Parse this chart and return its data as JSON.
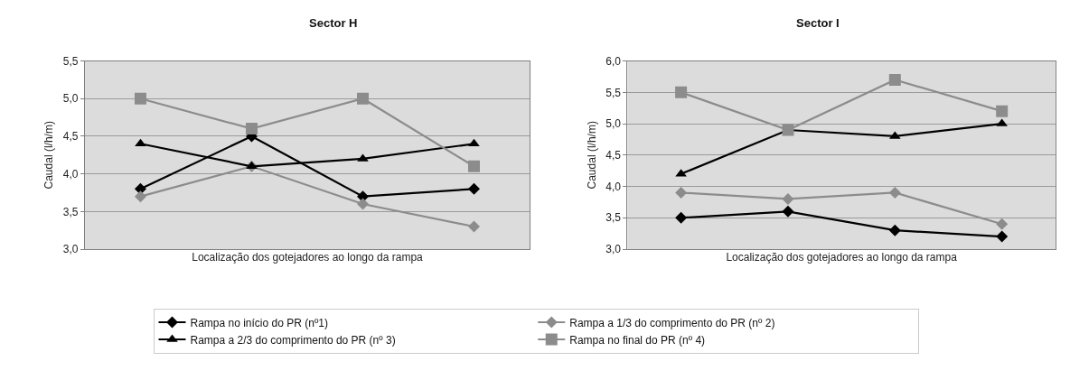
{
  "chart_data": [
    {
      "type": "line",
      "title": "Sector H",
      "xlabel": "Localização dos gotejadores ao longo da rampa",
      "ylabel": "Caudal (l/h/m)",
      "categories": [
        null,
        null,
        null,
        null
      ],
      "ylim": [
        3.0,
        5.5
      ],
      "yticks": [
        {
          "value": 3.0,
          "label": "3,0"
        },
        {
          "value": 3.5,
          "label": "3,5"
        },
        {
          "value": 4.0,
          "label": "4,0"
        },
        {
          "value": 4.5,
          "label": "4,5"
        },
        {
          "value": 5.0,
          "label": "5,0"
        },
        {
          "value": 5.5,
          "label": "5,5"
        }
      ],
      "grid": "y",
      "legend": "bottom",
      "series": [
        {
          "name": "Rampa no início do PR (nº1)",
          "color": "#000000",
          "marker": "diamond",
          "values": [
            3.8,
            4.5,
            3.7,
            3.8
          ]
        },
        {
          "name": "Rampa a 1/3 do comprimento do PR (nº 2)",
          "color": "#8c8c8c",
          "marker": "diamond",
          "values": [
            3.7,
            4.1,
            3.6,
            3.3
          ]
        },
        {
          "name": "Rampa a 2/3 do comprimento do PR (nº 3)",
          "color": "#000000",
          "marker": "triangle",
          "values": [
            4.4,
            4.1,
            4.2,
            4.4
          ]
        },
        {
          "name": "Rampa no final do PR (nº 4)",
          "color": "#8c8c8c",
          "marker": "square",
          "values": [
            5.0,
            4.6,
            5.0,
            4.1
          ]
        }
      ]
    },
    {
      "type": "line",
      "title": "Sector I",
      "xlabel": "Localização dos gotejadores ao longo da rampa",
      "ylabel": "Caudal (l/h/m)",
      "categories": [
        null,
        null,
        null,
        null
      ],
      "ylim": [
        3.0,
        6.0
      ],
      "yticks": [
        {
          "value": 3.0,
          "label": "3,0"
        },
        {
          "value": 3.5,
          "label": "3,5"
        },
        {
          "value": 4.0,
          "label": "4,0"
        },
        {
          "value": 4.5,
          "label": "4,5"
        },
        {
          "value": 5.0,
          "label": "5,0"
        },
        {
          "value": 5.5,
          "label": "5,5"
        },
        {
          "value": 6.0,
          "label": "6,0"
        }
      ],
      "grid": "y",
      "series": [
        {
          "color": "#000000",
          "marker": "diamond",
          "values": [
            3.5,
            3.6,
            3.3,
            3.2
          ]
        },
        {
          "color": "#8c8c8c",
          "marker": "diamond",
          "values": [
            3.9,
            3.8,
            3.9,
            3.4
          ]
        },
        {
          "color": "#000000",
          "marker": "triangle",
          "values": [
            4.2,
            4.9,
            4.8,
            5.0
          ]
        },
        {
          "color": "#8c8c8c",
          "marker": "square",
          "values": [
            5.5,
            4.9,
            5.7,
            5.2
          ]
        }
      ]
    }
  ]
}
